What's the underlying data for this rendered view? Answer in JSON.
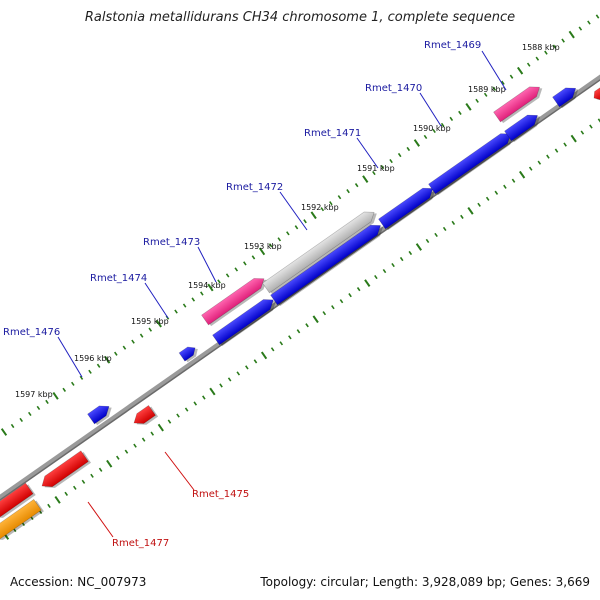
{
  "title": "Ralstonia metallidurans CH34 chromosome 1, complete sequence",
  "footer": {
    "accession": "Accession: NC_007973",
    "stats": "Topology: circular; Length: 3,928,089 bp; Genes: 3,669"
  },
  "colors": {
    "forward_gene": "#1010e0",
    "reverse_gene": "#e81010",
    "pink_gene": "#f0308a",
    "gray_gene": "#c8c8c8",
    "orange_gene": "#f49a10",
    "backbone": "#808080",
    "tick": "#2a7a1a",
    "label_forward": "#1a1aa0",
    "label_reverse": "#c01010"
  },
  "ticks": [
    {
      "label": "1588 kbp",
      "kbp": 1588
    },
    {
      "label": "1589 kbp",
      "kbp": 1589
    },
    {
      "label": "1590 kbp",
      "kbp": 1590
    },
    {
      "label": "1591 kbp",
      "kbp": 1591
    },
    {
      "label": "1592 kbp",
      "kbp": 1592
    },
    {
      "label": "1593 kbp",
      "kbp": 1593
    },
    {
      "label": "1594 kbp",
      "kbp": 1594
    },
    {
      "label": "1595 kbp",
      "kbp": 1595
    },
    {
      "label": "1596 kbp",
      "kbp": 1596
    },
    {
      "label": "1597 kbp",
      "kbp": 1597
    }
  ],
  "gene_labels": [
    {
      "name": "Rmet_1469",
      "strand": "forward"
    },
    {
      "name": "Rmet_1470",
      "strand": "forward"
    },
    {
      "name": "Rmet_1471",
      "strand": "forward"
    },
    {
      "name": "Rmet_1472",
      "strand": "forward"
    },
    {
      "name": "Rmet_1473",
      "strand": "forward"
    },
    {
      "name": "Rmet_1474",
      "strand": "forward"
    },
    {
      "name": "Rmet_1476",
      "strand": "forward"
    },
    {
      "name": "Rmet_1475",
      "strand": "reverse"
    },
    {
      "name": "Rmet_1477",
      "strand": "reverse"
    }
  ]
}
